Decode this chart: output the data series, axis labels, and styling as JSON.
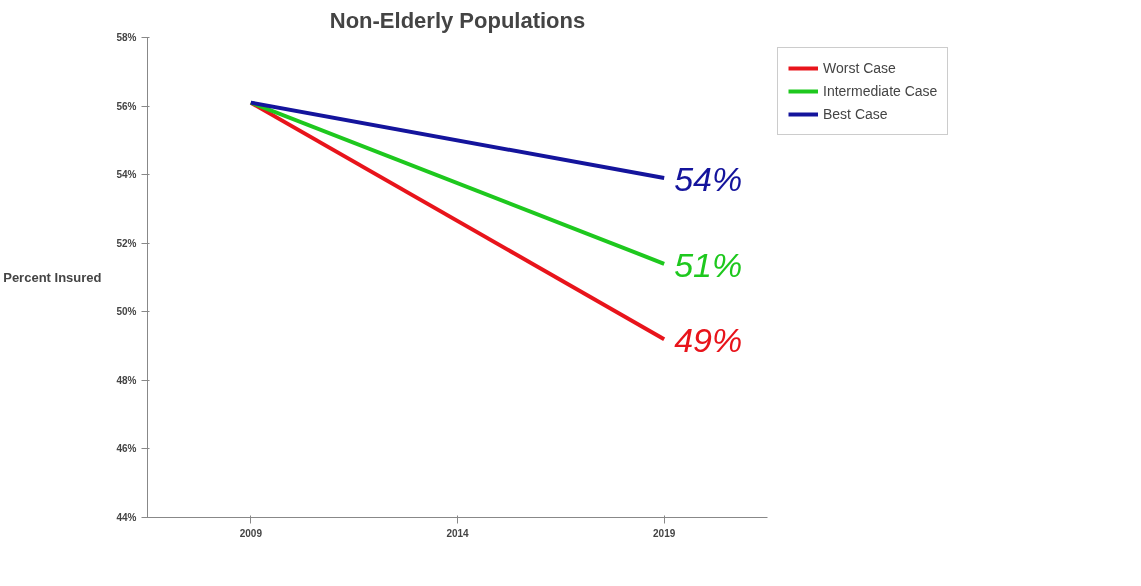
{
  "chart_data": {
    "type": "line",
    "title": "Non-Elderly Populations",
    "ylabel": "Percent Insured",
    "xlim": [
      2006.5,
      2021.5
    ],
    "xticks": [
      2009,
      2014,
      2019
    ],
    "ylim": [
      44,
      58
    ],
    "yticks": [
      {
        "value": 44,
        "label": "44%"
      },
      {
        "value": 46,
        "label": "46%"
      },
      {
        "value": 48,
        "label": "48%"
      },
      {
        "value": 50,
        "label": "50%"
      },
      {
        "value": 52,
        "label": "52%"
      },
      {
        "value": 54,
        "label": "54%"
      },
      {
        "value": 56,
        "label": "56%"
      },
      {
        "value": 58,
        "label": "58%"
      }
    ],
    "grid": false,
    "legend": "right",
    "marker": "none",
    "line_style": "solid",
    "x": [
      2009,
      2019
    ],
    "series": [
      {
        "name": "Worst Case",
        "color": "#e8141b",
        "values": [
          56.1,
          49.2
        ]
      },
      {
        "name": "Intermediate Case",
        "color": "#1ec81e",
        "values": [
          56.1,
          51.4
        ]
      },
      {
        "name": "Best Case",
        "color": "#14149c",
        "values": [
          56.1,
          53.9
        ]
      }
    ],
    "annotations": [
      "49%",
      "51%",
      "54%"
    ]
  }
}
